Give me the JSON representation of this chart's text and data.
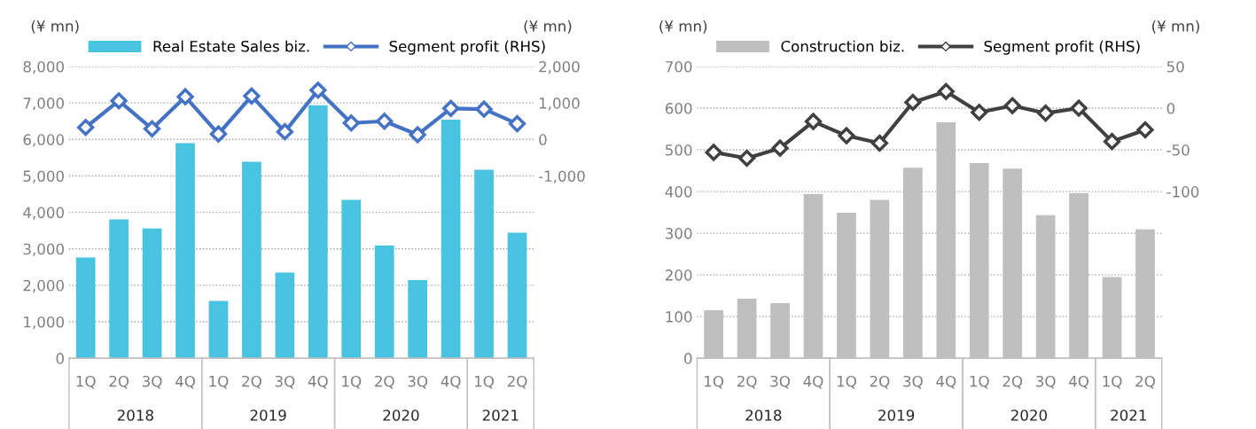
{
  "chart_data": [
    {
      "type": "bar",
      "ylabel": "(¥ mn)",
      "y2label": "(¥ mn)",
      "categories": [
        "1Q",
        "2Q",
        "3Q",
        "4Q",
        "1Q",
        "2Q",
        "3Q",
        "4Q",
        "1Q",
        "2Q",
        "3Q",
        "4Q",
        "1Q",
        "2Q"
      ],
      "series": [
        {
          "name": "Real Estate Sales biz.",
          "color": "#48c3e0",
          "values": [
            2760,
            3810,
            3560,
            5900,
            1570,
            5390,
            2350,
            6940,
            4340,
            3090,
            2140,
            6540,
            5170,
            3440
          ]
        },
        {
          "name": "Segment profit (RHS)",
          "type": "line",
          "axis": "y2",
          "color": "#4472c4",
          "marker": "diamond",
          "values": [
            330,
            1060,
            290,
            1170,
            150,
            1190,
            210,
            1350,
            450,
            500,
            130,
            850,
            830,
            430
          ]
        }
      ],
      "ylim": [
        0,
        8000
      ],
      "yticks": [
        {
          "value": 0,
          "label": "0"
        },
        {
          "value": 1000,
          "label": "1,000"
        },
        {
          "value": 2000,
          "label": "2,000"
        },
        {
          "value": 3000,
          "label": "3,000"
        },
        {
          "value": 4000,
          "label": "4,000"
        },
        {
          "value": 5000,
          "label": "5,000"
        },
        {
          "value": 6000,
          "label": "6,000"
        },
        {
          "value": 7000,
          "label": "7,000"
        },
        {
          "value": 8000,
          "label": "8,000"
        }
      ],
      "y2lim": [
        -6000,
        2000
      ],
      "y2ticks": [
        {
          "value": -1000,
          "label": "-1,000"
        },
        0,
        {
          "value": 1000,
          "label": "1,000"
        },
        {
          "value": 2000,
          "label": "2,000"
        }
      ],
      "grid": "y",
      "legend": "top",
      "annotations": [
        "2018",
        "2019",
        "2020",
        "2021"
      ]
    },
    {
      "type": "bar",
      "ylabel": "(¥ mn)",
      "y2label": "(¥ mn)",
      "categories": [
        "1Q",
        "2Q",
        "3Q",
        "4Q",
        "1Q",
        "2Q",
        "3Q",
        "4Q",
        "1Q",
        "2Q",
        "3Q",
        "4Q",
        "1Q",
        "2Q"
      ],
      "series": [
        {
          "name": "Construction biz.",
          "color": "#bfbfbf",
          "values": [
            115,
            143,
            132,
            394,
            349,
            380,
            457,
            566,
            468,
            455,
            343,
            396,
            195,
            309
          ]
        },
        {
          "name": "Segment profit (RHS)",
          "type": "line",
          "axis": "y2",
          "color": "#404040",
          "marker": "diamond",
          "values": [
            -53,
            -60,
            -48,
            -16,
            -33,
            -42,
            7,
            20,
            -5,
            3,
            -6,
            0,
            -40,
            -26
          ]
        }
      ],
      "ylim": [
        0,
        700
      ],
      "yticks": [
        0,
        100,
        200,
        300,
        400,
        500,
        600,
        700
      ],
      "y2lim": [
        -300,
        50
      ],
      "y2ticks": [
        -100,
        -50,
        0,
        50
      ],
      "grid": "y",
      "legend": "top",
      "annotations": [
        "2018",
        "2019",
        "2020",
        "2021"
      ]
    }
  ]
}
